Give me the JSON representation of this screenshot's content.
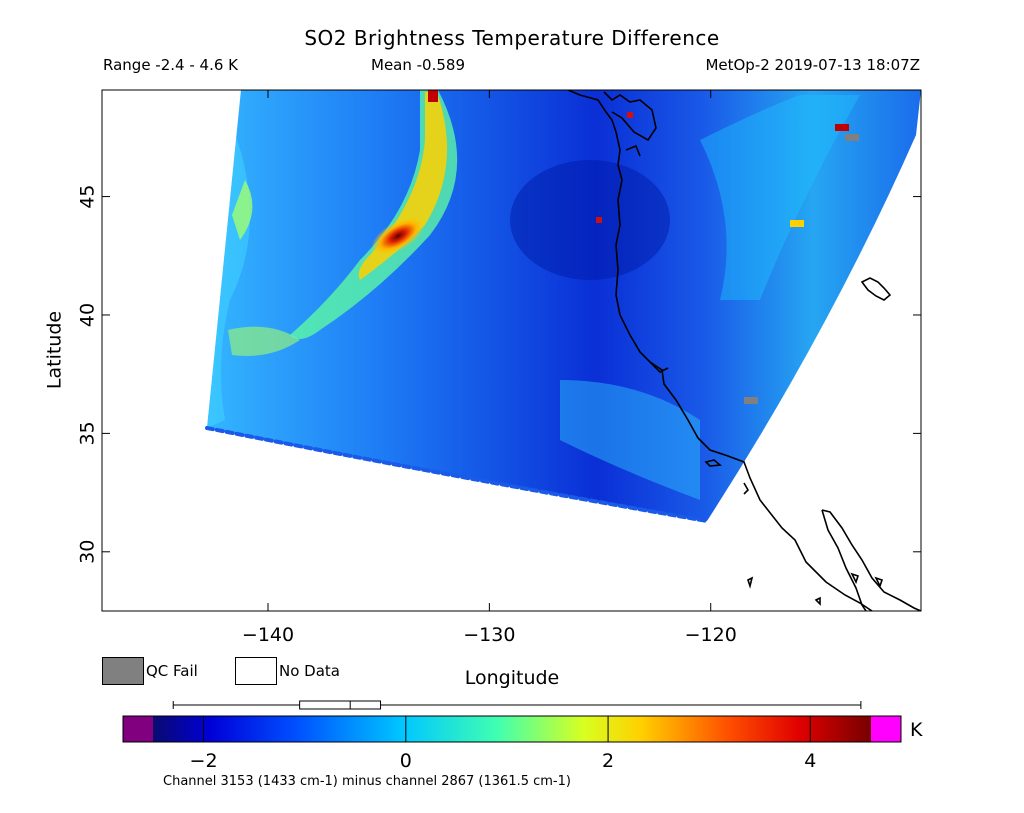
{
  "header": {
    "title": "SO2 Brightness Temperature Difference",
    "range_text": "Range -2.4 - 4.6 K",
    "mean_text": "Mean -0.589",
    "source_text": "MetOp-2 2019-07-13 18:07Z"
  },
  "map": {
    "projection": "equirectangular",
    "lon_range": [
      -147.5,
      -110.5
    ],
    "lat_range": [
      27.5,
      49.5
    ],
    "x_ticks": [
      -140,
      -130,
      -120
    ],
    "y_ticks": [
      30,
      35,
      40,
      45
    ],
    "x_tick_labels": [
      "−140",
      "−130",
      "−120"
    ],
    "y_tick_labels": [
      "30",
      "35",
      "40",
      "45"
    ],
    "xlabel": "Longitude",
    "ylabel": "Latitude",
    "swath_note_colors": {
      "background_field": "#1f4be6",
      "plume_core": "#a30000",
      "plume_edge": "#f6d200"
    }
  },
  "legend": {
    "qc_fail_label": "QC Fail",
    "no_data_label": "No Data",
    "qc_fail_color": "#808080",
    "no_data_color": "#ffffff"
  },
  "colorbar": {
    "unit": "K",
    "min": -2.5,
    "max": 4.6,
    "ticks": [
      -2,
      0,
      2,
      4
    ],
    "tick_labels": [
      "−2",
      "0",
      "2",
      "4"
    ],
    "under_color": "#800080",
    "over_color": "#ff00ff",
    "box_plot": {
      "whisker_low": -2.3,
      "q1": -1.05,
      "median": -0.55,
      "q3": -0.25,
      "whisker_high": 4.5
    },
    "caption": "Channel 3153 (1433 cm-1) minus channel 2867 (1361.5 cm-1)"
  }
}
